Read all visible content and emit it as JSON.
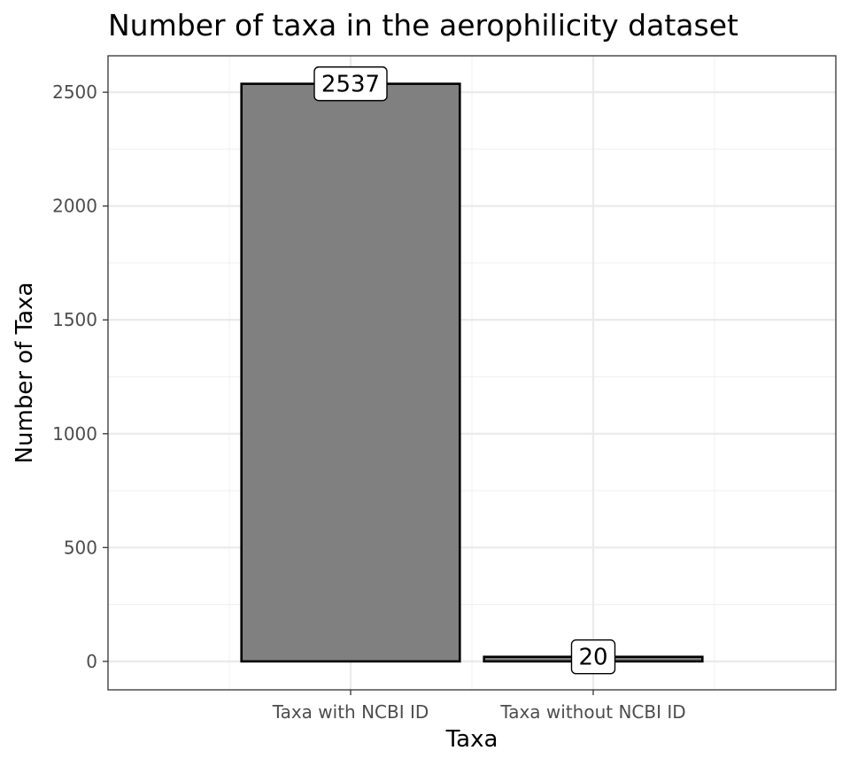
{
  "chart_data": {
    "type": "bar",
    "title": "Number of taxa in the aerophilicity dataset",
    "xlabel": "Taxa",
    "ylabel": "Number of Taxa",
    "categories": [
      "Taxa with NCBI ID",
      "Taxa without NCBI ID"
    ],
    "values": [
      2537,
      20
    ],
    "data_labels": [
      "2537",
      "20"
    ],
    "ylim": [
      -125,
      2660
    ],
    "yticks": [
      0,
      500,
      1000,
      1500,
      2000,
      2500
    ],
    "ytick_labels": [
      "0",
      "500",
      "1000",
      "1500",
      "2000",
      "2500"
    ],
    "grid": true,
    "legend": "none",
    "colors": {
      "bar_fill": "#808080",
      "bar_stroke": "#000000",
      "grid_major": "#ebebeb",
      "grid_minor": "#f2f2f2",
      "panel_border": "#333333",
      "tick_text": "#4d4d4d",
      "text": "#000000"
    }
  }
}
